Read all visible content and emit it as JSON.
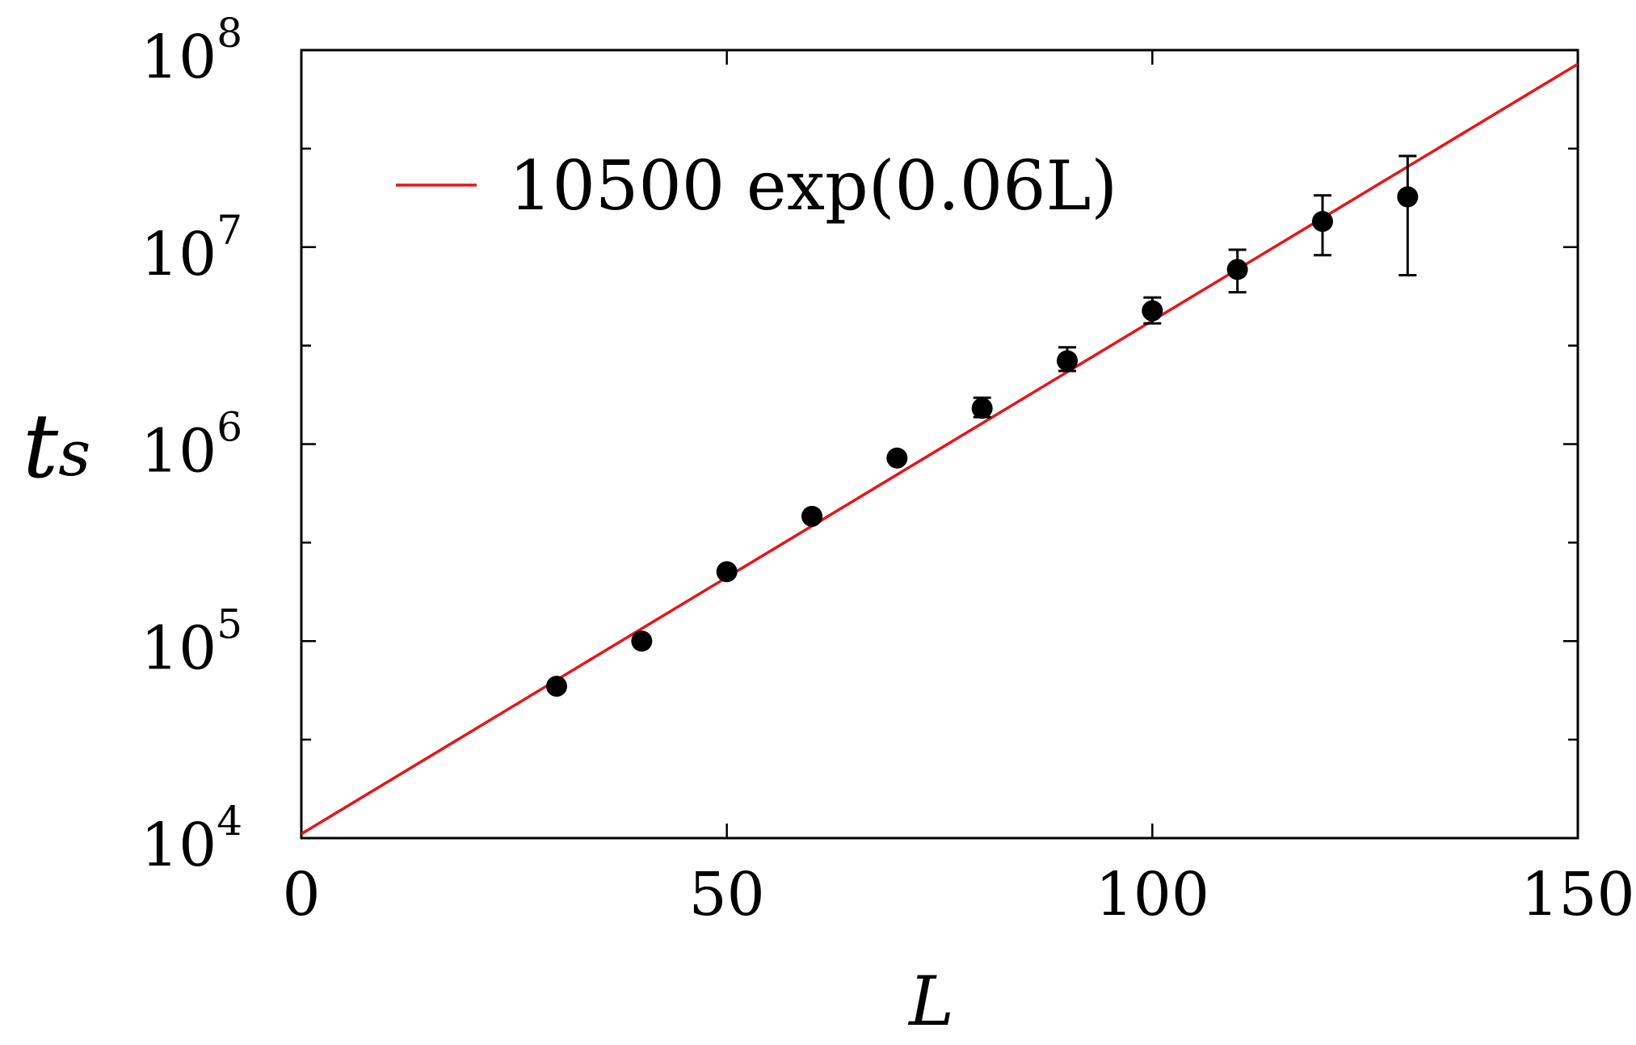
{
  "chart_data": {
    "type": "scatter",
    "xlabel": "L",
    "ylabel": "t",
    "ylabel_subscript": "s",
    "xlim": [
      0,
      150
    ],
    "ylim": [
      10000,
      100000000
    ],
    "y_scale": "log",
    "grid": false,
    "legend_position": "top-left",
    "x_ticks": [
      0,
      50,
      100,
      150
    ],
    "x_tick_labels": [
      "0",
      "50",
      "100",
      "150"
    ],
    "y_ticks": [
      10000,
      100000,
      1000000,
      10000000,
      100000000
    ],
    "y_tick_labels": [
      {
        "base": "10",
        "exp": "4"
      },
      {
        "base": "10",
        "exp": "5"
      },
      {
        "base": "10",
        "exp": "6"
      },
      {
        "base": "10",
        "exp": "7"
      },
      {
        "base": "10",
        "exp": "8"
      }
    ],
    "series": [
      {
        "type": "scatter",
        "color": "#000000",
        "x": [
          30,
          40,
          50,
          60,
          70,
          80,
          90,
          100,
          110,
          120,
          130
        ],
        "y": [
          59000,
          100000,
          225000,
          430000,
          850000,
          1520000,
          2650000,
          4750000,
          7700000,
          13500000,
          18000000
        ],
        "y_err_low": [
          3000,
          5000,
          10000,
          20000,
          40000,
          150000,
          300000,
          650000,
          1800000,
          4400000,
          10800000
        ],
        "y_err_high": [
          3000,
          5000,
          10000,
          20000,
          40000,
          200000,
          450000,
          800000,
          2000000,
          4800000,
          11000000
        ]
      },
      {
        "type": "line",
        "name": "10500 exp(0.06L)",
        "color": "#e8141b",
        "fit": {
          "prefactor": 10500,
          "rate": 0.06
        },
        "x": [
          0,
          150
        ],
        "y": [
          10500,
          85000000
        ]
      }
    ]
  }
}
